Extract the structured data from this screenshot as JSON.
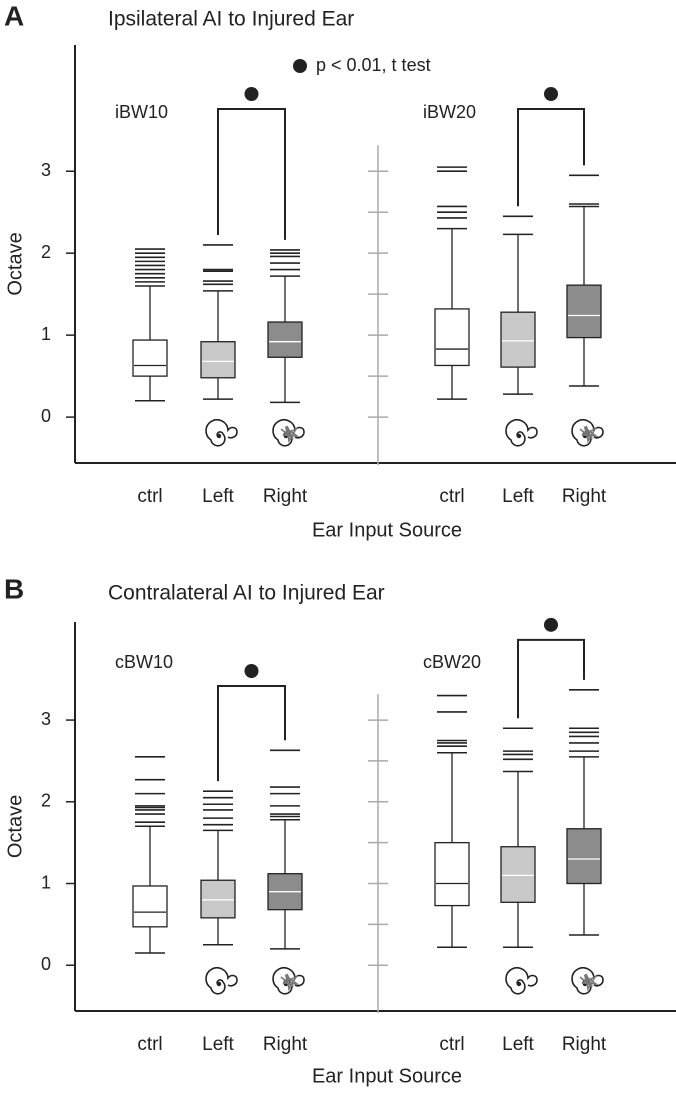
{
  "chart_data": [
    {
      "type": "box",
      "panel_label": "A",
      "title": "Ipsilateral AI to Injured Ear",
      "annotation": "p < 0.01, t test",
      "ylabel": "Octave",
      "xlabel": "Ear Input Source",
      "categories": [
        "ctrl",
        "Left",
        "Right"
      ],
      "colors": [
        "#ffffff",
        "#c8c8c8",
        "#8c8c8c"
      ],
      "median_colors": [
        "#222222",
        "#ffffff",
        "#ffffff"
      ],
      "ylim": [
        -0.56,
        4.54
      ],
      "yticks": [
        0,
        1,
        2,
        3
      ],
      "series": [
        {
          "name": "iBW10",
          "boxes": [
            {
              "whislo": 0.2,
              "q1": 0.5,
              "med": 0.63,
              "q3": 0.94,
              "whishi": 1.6,
              "fliers": [
                1.65,
                1.7,
                1.75,
                1.8,
                1.85,
                1.9,
                1.95,
                2.0,
                2.05
              ]
            },
            {
              "whislo": 0.22,
              "q1": 0.48,
              "med": 0.68,
              "q3": 0.92,
              "whishi": 1.54,
              "fliers": [
                1.62,
                1.66,
                1.78,
                1.8,
                2.1
              ]
            },
            {
              "whislo": 0.18,
              "q1": 0.73,
              "med": 0.92,
              "q3": 1.16,
              "whishi": 1.72,
              "fliers": [
                1.8,
                1.88,
                1.96,
                2.0,
                2.04
              ]
            }
          ]
        },
        {
          "name": "iBW20",
          "boxes": [
            {
              "whislo": 0.22,
              "q1": 0.63,
              "med": 0.83,
              "q3": 1.32,
              "whishi": 2.3,
              "fliers": [
                2.43,
                2.5,
                2.57,
                3.0,
                3.05
              ]
            },
            {
              "whislo": 0.28,
              "q1": 0.61,
              "med": 0.93,
              "q3": 1.28,
              "whishi": 2.23,
              "fliers": [
                2.45
              ]
            },
            {
              "whislo": 0.38,
              "q1": 0.97,
              "med": 1.24,
              "q3": 1.61,
              "whishi": 2.57,
              "fliers": [
                2.6,
                2.95
              ]
            }
          ]
        }
      ]
    },
    {
      "type": "box",
      "panel_label": "B",
      "title": "Contralateral AI to Injured Ear",
      "ylabel": "Octave",
      "xlabel": "Ear Input Source",
      "categories": [
        "ctrl",
        "Left",
        "Right"
      ],
      "colors": [
        "#ffffff",
        "#c8c8c8",
        "#8c8c8c"
      ],
      "median_colors": [
        "#222222",
        "#ffffff",
        "#ffffff"
      ],
      "ylim": [
        -0.56,
        4.2
      ],
      "yticks": [
        0,
        1,
        2,
        3
      ],
      "series": [
        {
          "name": "cBW10",
          "boxes": [
            {
              "whislo": 0.15,
              "q1": 0.47,
              "med": 0.65,
              "q3": 0.97,
              "whishi": 1.7,
              "fliers": [
                1.75,
                1.85,
                1.9,
                1.93,
                1.95,
                2.1,
                2.27,
                2.55
              ]
            },
            {
              "whislo": 0.25,
              "q1": 0.58,
              "med": 0.8,
              "q3": 1.04,
              "whishi": 1.65,
              "fliers": [
                1.72,
                1.8,
                1.9,
                1.97,
                2.05,
                2.13
              ]
            },
            {
              "whislo": 0.2,
              "q1": 0.68,
              "med": 0.9,
              "q3": 1.12,
              "whishi": 1.78,
              "fliers": [
                1.82,
                1.85,
                1.95,
                2.1,
                2.18,
                2.63
              ]
            }
          ]
        },
        {
          "name": "cBW20",
          "boxes": [
            {
              "whislo": 0.22,
              "q1": 0.73,
              "med": 1.0,
              "q3": 1.5,
              "whishi": 2.6,
              "fliers": [
                2.68,
                2.72,
                2.75,
                3.1,
                3.3
              ]
            },
            {
              "whislo": 0.22,
              "q1": 0.77,
              "med": 1.1,
              "q3": 1.45,
              "whishi": 2.37,
              "fliers": [
                2.52,
                2.58,
                2.62,
                2.9
              ]
            },
            {
              "whislo": 0.37,
              "q1": 1.0,
              "med": 1.3,
              "q3": 1.67,
              "whishi": 2.55,
              "fliers": [
                2.62,
                2.72,
                2.8,
                2.85,
                2.9,
                3.37
              ]
            }
          ]
        }
      ]
    }
  ]
}
